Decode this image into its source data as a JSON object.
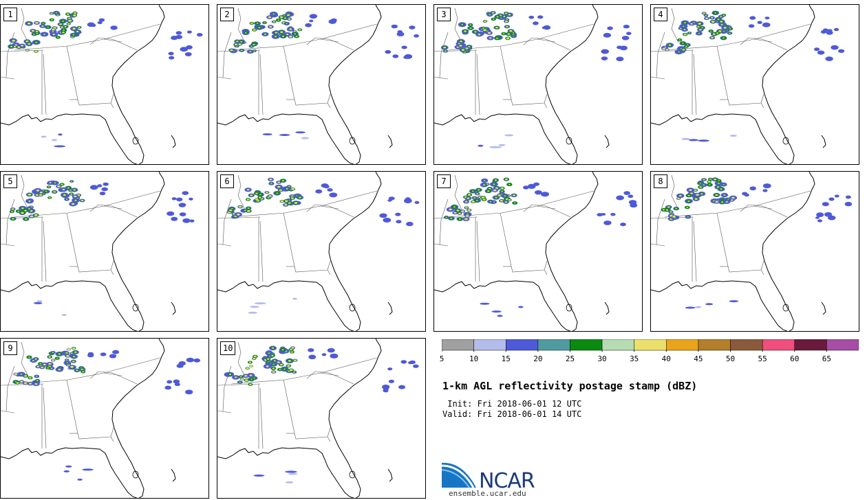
{
  "product_title": "1-km AGL reflectivity postage stamp (dBZ)",
  "init_time": " Init: Fri 2018-06-01 12 UTC",
  "valid_time": "Valid: Fri 2018-06-01 14 UTC",
  "members": [
    {
      "label": "1"
    },
    {
      "label": "2"
    },
    {
      "label": "3"
    },
    {
      "label": "4"
    },
    {
      "label": "5"
    },
    {
      "label": "6"
    },
    {
      "label": "7"
    },
    {
      "label": "8"
    },
    {
      "label": "9"
    },
    {
      "label": "10"
    }
  ],
  "colorbar": {
    "ticks": [
      "5",
      "10",
      "15",
      "20",
      "25",
      "30",
      "35",
      "40",
      "45",
      "50",
      "55",
      "60",
      "65"
    ],
    "colors": [
      "#a0a0a0",
      "#b4bcec",
      "#4f5ad8",
      "#4f9ba0",
      "#0a8a10",
      "#b7dcb4",
      "#ece06c",
      "#eaa41a",
      "#b47e2a",
      "#8b5a3c",
      "#ee4f7c",
      "#6a1a3a",
      "#a64ea6"
    ]
  },
  "logo": {
    "text": "NCAR",
    "site": "ensemble.ucar.edu"
  }
}
